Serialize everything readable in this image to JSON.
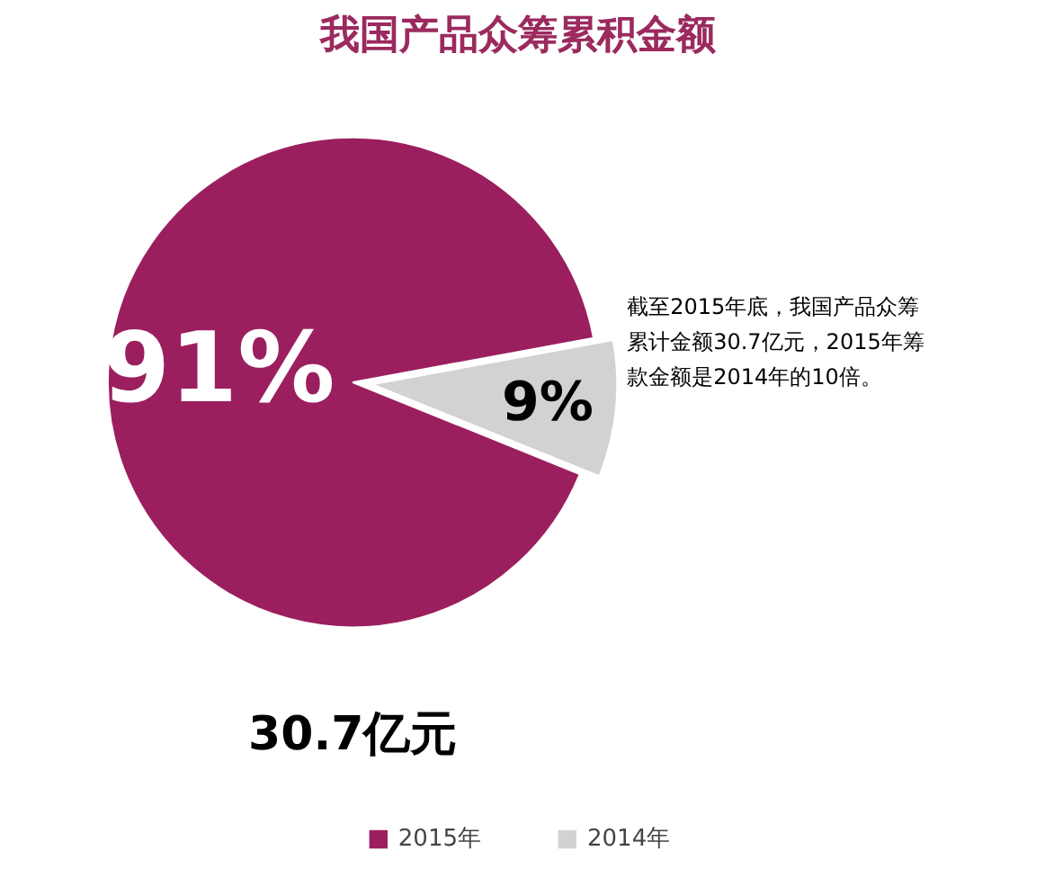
{
  "chart_data": {
    "type": "pie",
    "title": "我国产品众筹累积金额",
    "categories": [
      "2015年",
      "2014年"
    ],
    "values": [
      91,
      9
    ],
    "colors": [
      "#9b1f5f",
      "#d2d2d2"
    ],
    "value_labels": [
      "91%",
      "9%"
    ],
    "legend": "bottom",
    "annotations": [
      "截至2015年底，我国产品众筹累计金额30.7亿元，2015年筹款金额是2014年的10倍。",
      "30.7亿元"
    ]
  }
}
